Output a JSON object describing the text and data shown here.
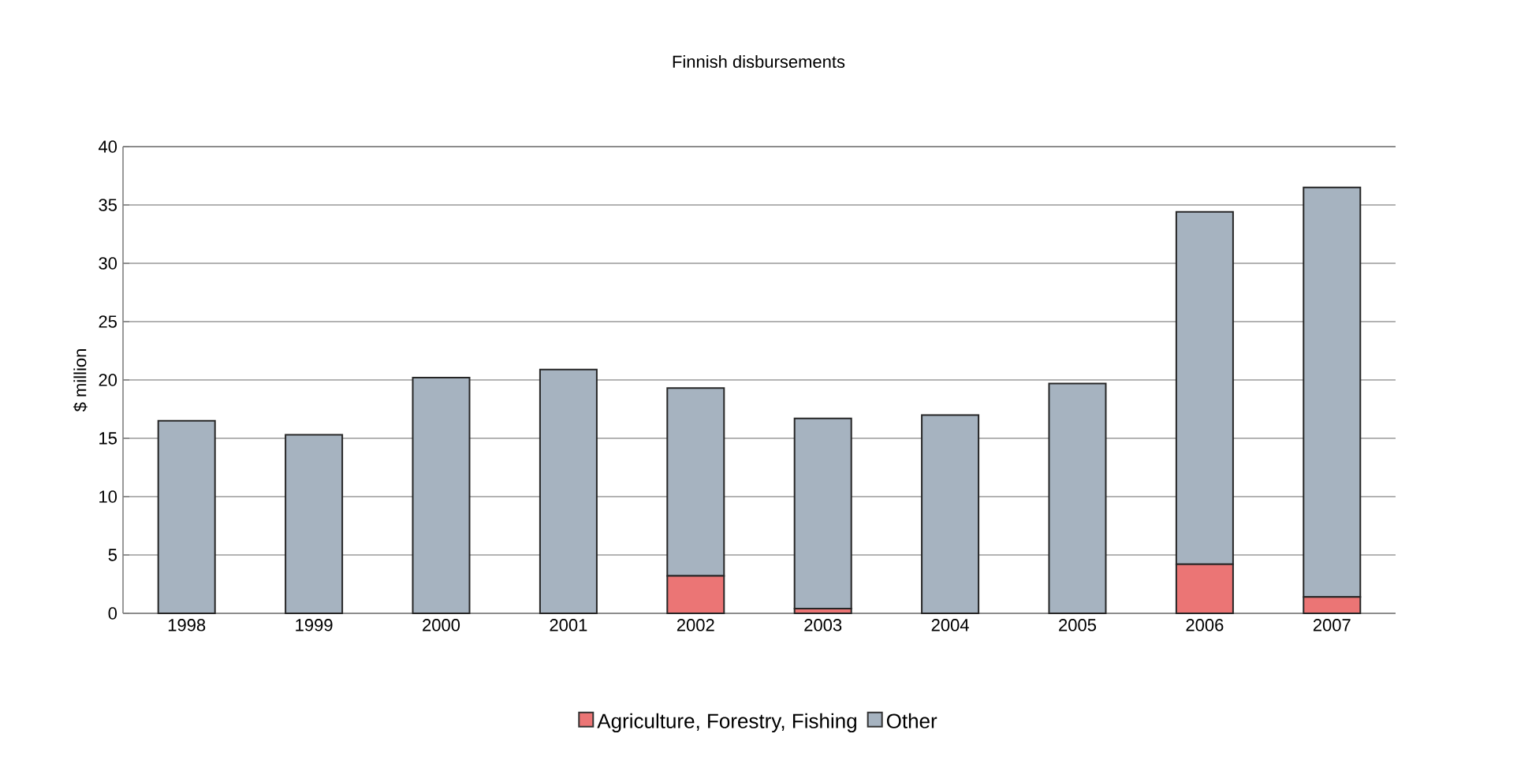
{
  "chart_data": {
    "type": "bar",
    "title": "Finnish disbursements",
    "ylabel": "$ million",
    "categories": [
      "1998",
      "1999",
      "2000",
      "2001",
      "2002",
      "2003",
      "2004",
      "2005",
      "2006",
      "2007"
    ],
    "stacked": true,
    "series": [
      {
        "name": "Agriculture, Forestry, Fishing",
        "color": "#eb7575",
        "values": [
          0,
          0,
          0,
          0,
          3.2,
          0.4,
          0,
          0,
          4.2,
          1.4
        ]
      },
      {
        "name": "Other",
        "color": "#a6b3c0",
        "values": [
          16.5,
          15.3,
          20.2,
          20.9,
          16.1,
          16.3,
          17.0,
          19.7,
          30.2,
          35.1
        ]
      }
    ],
    "ylim": [
      0,
      40
    ],
    "yticks": [
      0,
      5,
      10,
      15,
      20,
      25,
      30,
      35,
      40
    ],
    "grid": "y",
    "legend": "bottom"
  }
}
